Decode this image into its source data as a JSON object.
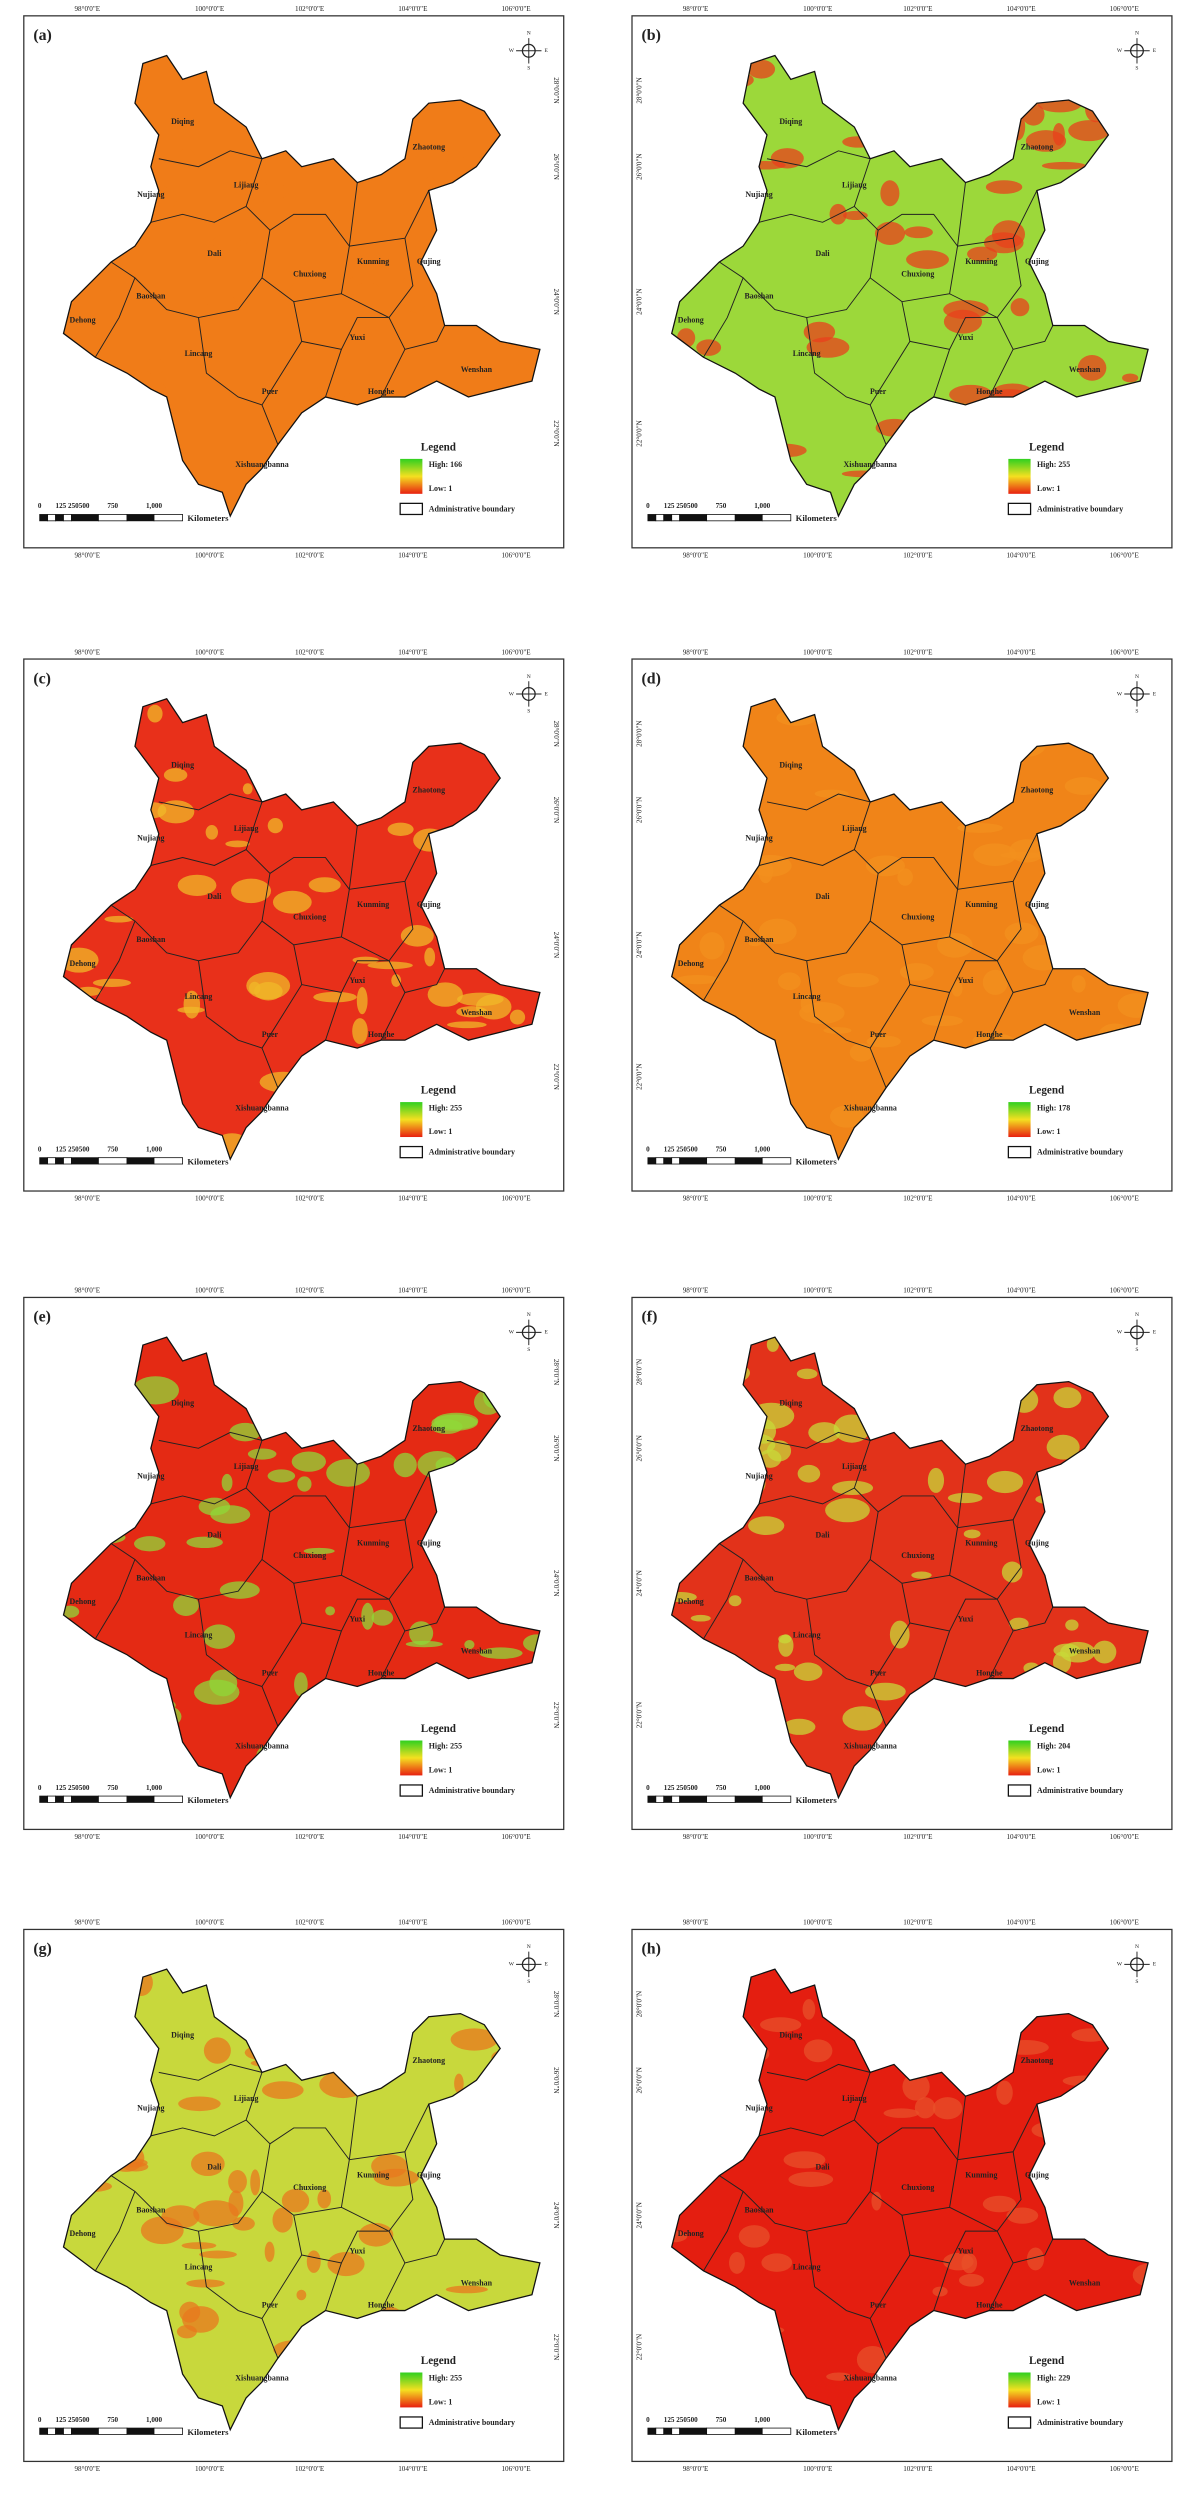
{
  "figure": {
    "longitudes": [
      "98°0'0\"E",
      "100°0'0\"E",
      "102°0'0\"E",
      "104°0'0\"E",
      "106°0'0\"E"
    ],
    "latitudes": [
      "28°0'0\"N",
      "26°0'0\"N",
      "24°0'0\"N",
      "22°0'0\"N"
    ],
    "cities": [
      "Diqing",
      "Nujiang",
      "Lijiang",
      "Zhaotong",
      "Dali",
      "Chuxiong",
      "Kunming",
      "Qujing",
      "Baoshan",
      "Dehong",
      "Lincang",
      "Yuxi",
      "Wenshan",
      "Puer",
      "Honghe",
      "Xishuangbanna"
    ],
    "legend_title": "Legend",
    "scale_labels": [
      "0",
      "125 250",
      "500",
      "750",
      "1,000"
    ],
    "scale_unit": "Kilometers",
    "boundary_label": "Administrative boundary",
    "compass": [
      "N",
      "S",
      "E",
      "W"
    ]
  },
  "panels": [
    {
      "label": "(a)",
      "high": "High: 166",
      "low": "Low: 1",
      "fill": "#f07c18",
      "accent": "#f07c18"
    },
    {
      "label": "(b)",
      "high": "High: 255",
      "low": "Low: 1",
      "fill": "#9cd83a",
      "accent": "#e8401c"
    },
    {
      "label": "(c)",
      "high": "High: 255",
      "low": "Low: 1",
      "fill": "#e8301a",
      "accent": "#f0b828"
    },
    {
      "label": "(d)",
      "high": "High: 178",
      "low": "Low: 1",
      "fill": "#f08418",
      "accent": "#f3901e"
    },
    {
      "label": "(e)",
      "high": "High: 255",
      "low": "Low: 1",
      "fill": "#e42a14",
      "accent": "#90d838"
    },
    {
      "label": "(f)",
      "high": "High: 204",
      "low": "Low: 1",
      "fill": "#e2321a",
      "accent": "#c8d838"
    },
    {
      "label": "(g)",
      "high": "High: 255",
      "low": "Low: 1",
      "fill": "#c8d83c",
      "accent": "#e8781e"
    },
    {
      "label": "(h)",
      "high": "High: 229",
      "low": "Low: 1",
      "fill": "#e41e10",
      "accent": "#e8502a"
    }
  ]
}
